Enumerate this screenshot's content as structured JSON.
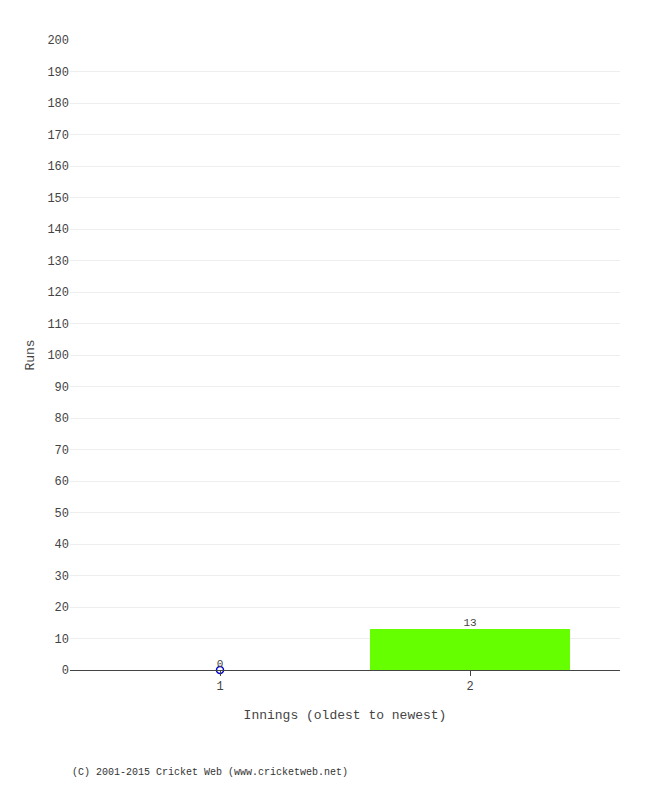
{
  "chart_data": {
    "type": "bar",
    "xlabel": "Innings (oldest to newest)",
    "ylabel": "Runs",
    "x": [
      1,
      2
    ],
    "values": [
      0,
      13
    ],
    "colors": [
      "#0000cc",
      "#66ff00"
    ],
    "marker": "circle-open",
    "xlim": [
      0.4,
      2.6
    ],
    "xticks": [
      1,
      2
    ],
    "ylim": [
      0,
      200
    ],
    "yticks": [
      0,
      10,
      20,
      30,
      40,
      50,
      60,
      70,
      80,
      90,
      100,
      110,
      120,
      130,
      140,
      150,
      160,
      170,
      180,
      190,
      200
    ],
    "grid": true,
    "data_labels": true,
    "annotations": [
      "(C) 2001-2015 Cricket Web (www.cricketweb.net)"
    ]
  }
}
